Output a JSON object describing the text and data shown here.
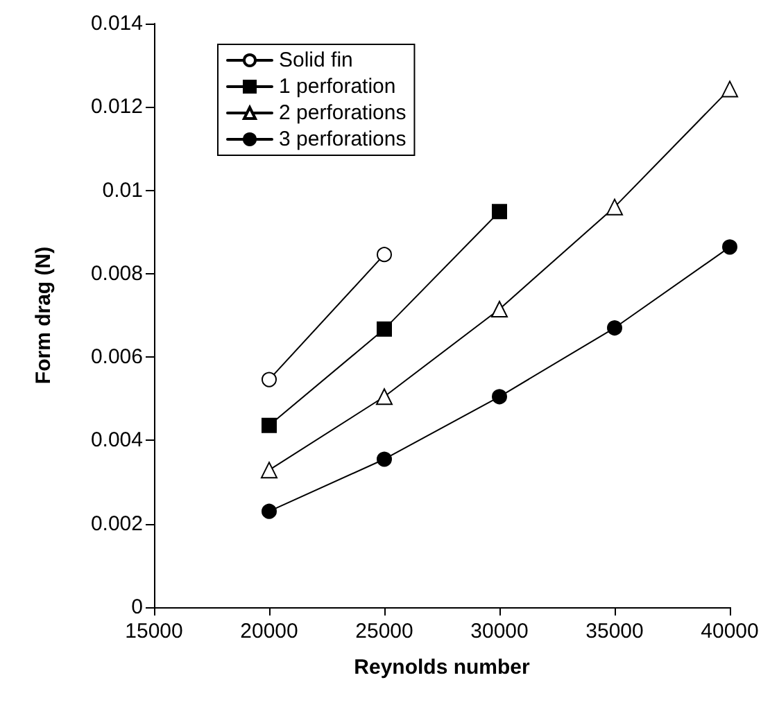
{
  "chart_data": {
    "type": "line",
    "xlabel": "Reynolds number",
    "ylabel": "Form drag (N)",
    "xlim": [
      15000,
      40000
    ],
    "xticks": [
      15000,
      20000,
      25000,
      30000,
      35000,
      40000
    ],
    "ylim": [
      0,
      0.014
    ],
    "yticks": [
      0,
      0.002,
      0.004,
      0.006,
      0.008,
      0.01,
      0.012,
      0.014
    ],
    "grid": false,
    "legend": "top left",
    "line_style": "solid",
    "series": [
      {
        "name": "Solid fin",
        "color": "#000000",
        "marker": "circle",
        "x": [
          20000,
          25000
        ],
        "values": [
          0.00546,
          0.00846
        ]
      },
      {
        "name": "1 perforation",
        "color": "#000000",
        "marker": "square",
        "x": [
          20000,
          25000,
          30000
        ],
        "values": [
          0.00436,
          0.00667,
          0.00949
        ]
      },
      {
        "name": "2 perforations",
        "color": "#000000",
        "marker": "triangle",
        "x": [
          20000,
          25000,
          30000,
          35000,
          40000
        ],
        "values": [
          0.00329,
          0.00505,
          0.00715,
          0.0096,
          0.01243
        ]
      },
      {
        "name": "3 perforations",
        "color": "#000000",
        "marker": "circle",
        "x": [
          20000,
          25000,
          30000,
          35000,
          40000
        ],
        "values": [
          0.0023,
          0.00355,
          0.00505,
          0.0067,
          0.00864
        ]
      }
    ]
  }
}
